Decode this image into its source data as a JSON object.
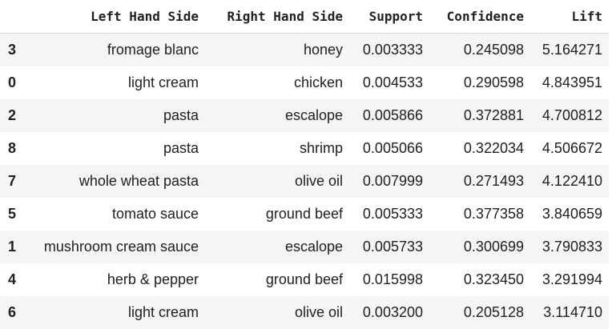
{
  "table": {
    "columns": [
      "",
      "Left Hand Side",
      "Right Hand Side",
      "Support",
      "Confidence",
      "Lift"
    ],
    "rows": [
      {
        "index": "3",
        "lhs": "fromage blanc",
        "rhs": "honey",
        "support": "0.003333",
        "confidence": "0.245098",
        "lift": "5.164271"
      },
      {
        "index": "0",
        "lhs": "light cream",
        "rhs": "chicken",
        "support": "0.004533",
        "confidence": "0.290598",
        "lift": "4.843951"
      },
      {
        "index": "2",
        "lhs": "pasta",
        "rhs": "escalope",
        "support": "0.005866",
        "confidence": "0.372881",
        "lift": "4.700812"
      },
      {
        "index": "8",
        "lhs": "pasta",
        "rhs": "shrimp",
        "support": "0.005066",
        "confidence": "0.322034",
        "lift": "4.506672"
      },
      {
        "index": "7",
        "lhs": "whole wheat pasta",
        "rhs": "olive oil",
        "support": "0.007999",
        "confidence": "0.271493",
        "lift": "4.122410"
      },
      {
        "index": "5",
        "lhs": "tomato sauce",
        "rhs": "ground beef",
        "support": "0.005333",
        "confidence": "0.377358",
        "lift": "3.840659"
      },
      {
        "index": "1",
        "lhs": "mushroom cream sauce",
        "rhs": "escalope",
        "support": "0.005733",
        "confidence": "0.300699",
        "lift": "3.790833"
      },
      {
        "index": "4",
        "lhs": "herb & pepper",
        "rhs": "ground beef",
        "support": "0.015998",
        "confidence": "0.323450",
        "lift": "3.291994"
      },
      {
        "index": "6",
        "lhs": "light cream",
        "rhs": "olive oil",
        "support": "0.003200",
        "confidence": "0.205128",
        "lift": "3.114710"
      }
    ]
  }
}
